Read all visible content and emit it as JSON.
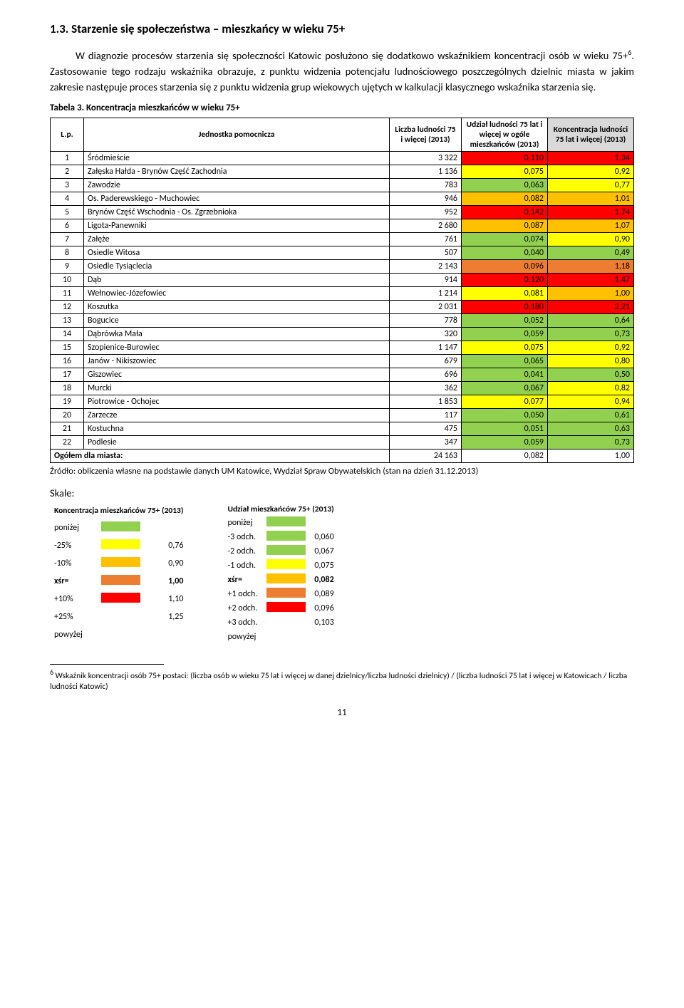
{
  "section": {
    "title": "1.3. Starzenie się społeczeństwa – mieszkańcy w wieku 75+",
    "para1": "W diagnozie procesów starzenia się społeczności Katowic posłużono się dodatkowo wskaźnikiem koncentracji osób w wieku 75+",
    "sup1": "6",
    "para1_end": ". Zastosowanie tego rodzaju wskaźnika obrazuje, z punktu widzenia potencjału ludnościowego poszczególnych dzielnic miasta w jakim zakresie następuje proces starzenia się z punktu widzenia grup wiekowych ujętych w kalkulacji klasycznego wskaźnika starzenia się."
  },
  "table": {
    "caption": "Tabela 3. Koncentracja mieszkańców w wieku 75+",
    "headers": {
      "lp": "L.p.",
      "unit": "Jednostka pomocnicza",
      "pop75": "Liczba ludności 75 i więcej (2013)",
      "share": "Udział ludności 75 lat i więcej w ogóle mieszkańców (2013)",
      "conc": "Koncentracja ludności 75 lat i więcej (2013)"
    },
    "colors": {
      "green": "#92d050",
      "yellow": "#ffff00",
      "orange": "#ffc000",
      "darkorange": "#ed7d31",
      "red": "#ff0000",
      "conc_header_bg": "#d9d9d9"
    },
    "rows": [
      {
        "lp": "1",
        "unit": "Śródmieście",
        "pop": "3 322",
        "share": "0,110",
        "shareColor": "red",
        "conc": "1,34",
        "concColor": "red"
      },
      {
        "lp": "2",
        "unit": "Załęska Hałda - Brynów Część Zachodnia",
        "pop": "1 136",
        "share": "0,075",
        "shareColor": "yellow",
        "conc": "0,92",
        "concColor": "yellow"
      },
      {
        "lp": "3",
        "unit": "Zawodzie",
        "pop": "783",
        "share": "0,063",
        "shareColor": "green",
        "conc": "0,77",
        "concColor": "yellow"
      },
      {
        "lp": "4",
        "unit": "Os. Paderewskiego - Muchowiec",
        "pop": "946",
        "share": "0,082",
        "shareColor": "orange",
        "conc": "1,01",
        "concColor": "orange"
      },
      {
        "lp": "5",
        "unit": "Brynów Część Wschodnia - Os. Zgrzebnioka",
        "pop": "952",
        "share": "0,142",
        "shareColor": "red",
        "conc": "1,74",
        "concColor": "red"
      },
      {
        "lp": "6",
        "unit": "Ligota-Panewniki",
        "pop": "2 680",
        "share": "0,087",
        "shareColor": "orange",
        "conc": "1,07",
        "concColor": "orange"
      },
      {
        "lp": "7",
        "unit": "Załęże",
        "pop": "761",
        "share": "0,074",
        "shareColor": "green",
        "conc": "0,90",
        "concColor": "yellow"
      },
      {
        "lp": "8",
        "unit": "Osiedle Witosa",
        "pop": "507",
        "share": "0,040",
        "shareColor": "green",
        "conc": "0,49",
        "concColor": "green"
      },
      {
        "lp": "9",
        "unit": "Osiedle Tysiąclecia",
        "pop": "2 143",
        "share": "0,096",
        "shareColor": "darkorange",
        "conc": "1,18",
        "concColor": "darkorange"
      },
      {
        "lp": "10",
        "unit": "Dąb",
        "pop": "914",
        "share": "0,120",
        "shareColor": "red",
        "conc": "1,47",
        "concColor": "red"
      },
      {
        "lp": "11",
        "unit": "Wełnowiec-Józefowiec",
        "pop": "1 214",
        "share": "0,081",
        "shareColor": "yellow",
        "conc": "1,00",
        "concColor": "orange"
      },
      {
        "lp": "12",
        "unit": "Koszutka",
        "pop": "2 031",
        "share": "0,180",
        "shareColor": "red",
        "conc": "2,21",
        "concColor": "red"
      },
      {
        "lp": "13",
        "unit": "Bogucice",
        "pop": "778",
        "share": "0,052",
        "shareColor": "green",
        "conc": "0,64",
        "concColor": "green"
      },
      {
        "lp": "14",
        "unit": "Dąbrówka Mała",
        "pop": "320",
        "share": "0,059",
        "shareColor": "green",
        "conc": "0,73",
        "concColor": "green"
      },
      {
        "lp": "15",
        "unit": "Szopienice-Burowiec",
        "pop": "1 147",
        "share": "0,075",
        "shareColor": "yellow",
        "conc": "0,92",
        "concColor": "yellow"
      },
      {
        "lp": "16",
        "unit": "Janów - Nikiszowiec",
        "pop": "679",
        "share": "0,065",
        "shareColor": "green",
        "conc": "0,80",
        "concColor": "yellow"
      },
      {
        "lp": "17",
        "unit": "Giszowiec",
        "pop": "696",
        "share": "0,041",
        "shareColor": "green",
        "conc": "0,50",
        "concColor": "green"
      },
      {
        "lp": "18",
        "unit": "Murcki",
        "pop": "362",
        "share": "0,067",
        "shareColor": "green",
        "conc": "0,82",
        "concColor": "yellow"
      },
      {
        "lp": "19",
        "unit": "Piotrowice - Ochojec",
        "pop": "1 853",
        "share": "0,077",
        "shareColor": "yellow",
        "conc": "0,94",
        "concColor": "yellow"
      },
      {
        "lp": "20",
        "unit": "Zarzecze",
        "pop": "117",
        "share": "0,050",
        "shareColor": "green",
        "conc": "0,61",
        "concColor": "green"
      },
      {
        "lp": "21",
        "unit": "Kostuchna",
        "pop": "475",
        "share": "0,051",
        "shareColor": "green",
        "conc": "0,63",
        "concColor": "green"
      },
      {
        "lp": "22",
        "unit": "Podlesie",
        "pop": "347",
        "share": "0,059",
        "shareColor": "green",
        "conc": "0,73",
        "concColor": "green"
      }
    ],
    "totals": {
      "label": "Ogółem dla miasta:",
      "pop": "24 163",
      "share": "0,082",
      "conc": "1,00"
    },
    "source": "Źródło: obliczenia własne na podstawie danych UM Katowice, Wydział Spraw Obywatelskich (stan na dzień 31.12.2013)"
  },
  "skale": {
    "label": "Skale:",
    "legend1": {
      "title": "Koncentracja mieszkańców 75+ (2013)",
      "rows": [
        {
          "label": "poniżej",
          "value": "",
          "color": "green"
        },
        {
          "label": "-25%",
          "value": "0,76",
          "color": "yellow"
        },
        {
          "label": "-10%",
          "value": "0,90",
          "color": "orange"
        },
        {
          "label": "xśr=",
          "value": "1,00",
          "color": "darkorange",
          "bold": true
        },
        {
          "label": "+10%",
          "value": "1,10",
          "color": "red"
        },
        {
          "label": "+25%",
          "value": "1,25",
          "color": ""
        },
        {
          "label": "powyżej",
          "value": "",
          "color": ""
        }
      ]
    },
    "legend2": {
      "title": "Udział mieszkańców 75+ (2013)",
      "rows": [
        {
          "label": "poniżej",
          "value": "",
          "color": "green"
        },
        {
          "label": "-3 odch.",
          "value": "0,060",
          "color": "green"
        },
        {
          "label": "-2 odch.",
          "value": "0,067",
          "color": "green"
        },
        {
          "label": "-1 odch.",
          "value": "0,075",
          "color": "yellow"
        },
        {
          "label": "xśr=",
          "value": "0,082",
          "color": "orange",
          "bold": true
        },
        {
          "label": "+1 odch.",
          "value": "0,089",
          "color": "darkorange"
        },
        {
          "label": "+2 odch.",
          "value": "0,096",
          "color": "red"
        },
        {
          "label": "+3 odch.",
          "value": "0,103",
          "color": ""
        },
        {
          "label": "powyżej",
          "value": "",
          "color": ""
        }
      ]
    }
  },
  "footnote": {
    "marker": "6",
    "text": " Wskaźnik koncentracji osób 75+ postaci: (liczba osób w wieku 75 lat i więcej w danej dzielnicy/liczba ludności dzielnicy) / (liczba ludności 75 lat i więcej w Katowicach / liczba ludności Katowic)"
  },
  "page": "11"
}
